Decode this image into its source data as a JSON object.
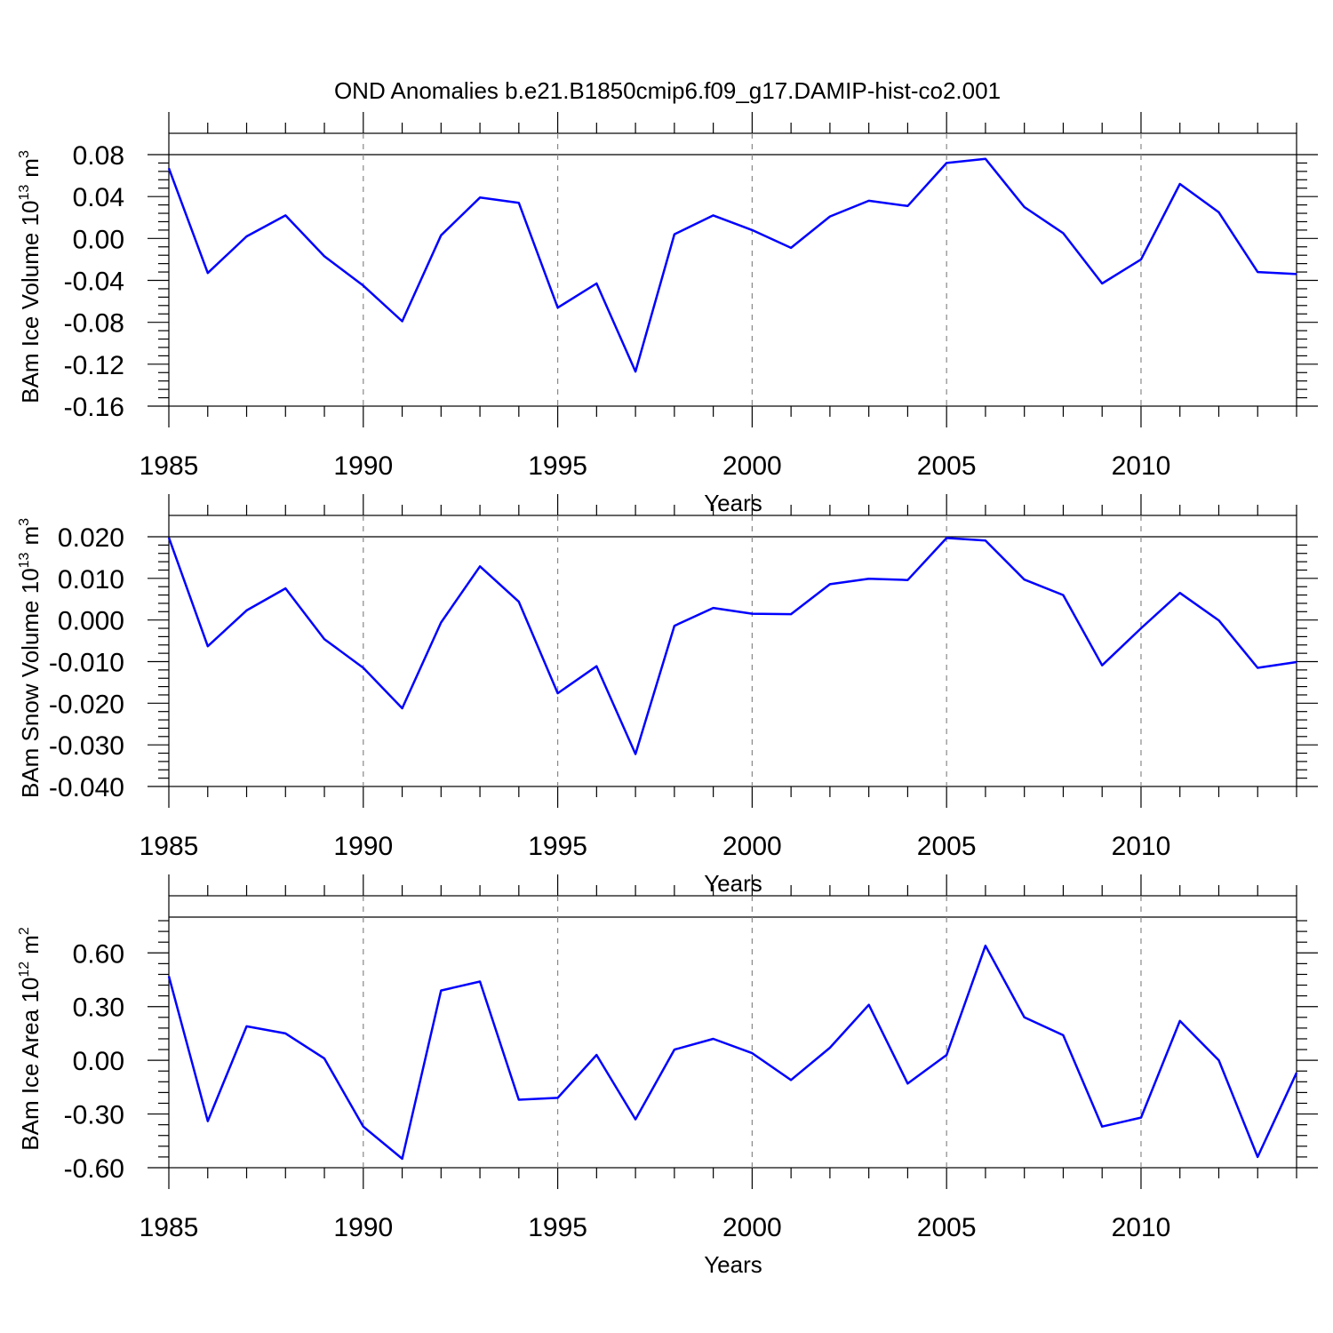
{
  "title": "OND Anomalies b.e21.B1850cmip6.f09_g17.DAMIP-hist-co2.001",
  "colors": {
    "line": "#0000ff",
    "axis": "#000000",
    "grid": "#888888"
  },
  "chart_data": [
    {
      "type": "line",
      "title": "",
      "xlabel": "Years",
      "ylabel": "BAm Ice Volume 10",
      "ylabel_exponent": "13",
      "ylabel_unit": "m",
      "ylabel_unit_exponent": "3",
      "xlim": [
        1985,
        2014
      ],
      "ylim": [
        -0.16,
        0.08
      ],
      "x_ticks": [
        1985,
        1990,
        1995,
        2000,
        2005,
        2010
      ],
      "x_tick_labels": [
        "1985",
        "1990",
        "1995",
        "2000",
        "2005",
        "2010"
      ],
      "y_ticks": [
        -0.16,
        -0.12,
        -0.08,
        -0.04,
        0.0,
        0.04,
        0.08
      ],
      "y_tick_labels": [
        "-0.16",
        "-0.12",
        "-0.08",
        "-0.04",
        "0.00",
        "0.04",
        "0.08"
      ],
      "y_minor_step": 0.008,
      "grid": "vertical dashed at major x ticks",
      "series": [
        {
          "name": "BAm Ice Volume",
          "x": [
            1985,
            1986,
            1987,
            1988,
            1989,
            1990,
            1991,
            1992,
            1993,
            1994,
            1995,
            1996,
            1997,
            1998,
            1999,
            2000,
            2001,
            2002,
            2003,
            2004,
            2005,
            2006,
            2007,
            2008,
            2009,
            2010,
            2011,
            2012,
            2013,
            2014
          ],
          "values": [
            0.067,
            -0.033,
            0.002,
            0.022,
            -0.017,
            -0.045,
            -0.079,
            0.003,
            0.039,
            0.034,
            -0.066,
            -0.043,
            -0.127,
            0.004,
            0.022,
            0.008,
            -0.009,
            0.021,
            0.036,
            0.031,
            0.072,
            0.076,
            0.03,
            0.005,
            -0.043,
            -0.02,
            0.052,
            0.025,
            -0.032,
            -0.034
          ]
        }
      ]
    },
    {
      "type": "line",
      "title": "",
      "xlabel": "Years",
      "ylabel": "BAm Snow Volume 10",
      "ylabel_exponent": "13",
      "ylabel_unit": "m",
      "ylabel_unit_exponent": "3",
      "xlim": [
        1985,
        2014
      ],
      "ylim": [
        -0.04,
        0.02
      ],
      "x_ticks": [
        1985,
        1990,
        1995,
        2000,
        2005,
        2010
      ],
      "x_tick_labels": [
        "1985",
        "1990",
        "1995",
        "2000",
        "2005",
        "2010"
      ],
      "y_ticks": [
        -0.04,
        -0.03,
        -0.02,
        -0.01,
        0.0,
        0.01,
        0.02
      ],
      "y_tick_labels": [
        "-0.040",
        "-0.030",
        "-0.020",
        "-0.010",
        "0.000",
        "0.010",
        "0.020"
      ],
      "y_minor_step": 0.002,
      "grid": "vertical dashed at major x ticks",
      "series": [
        {
          "name": "BAm Snow Volume",
          "x": [
            1985,
            1986,
            1987,
            1988,
            1989,
            1990,
            1991,
            1992,
            1993,
            1994,
            1995,
            1996,
            1997,
            1998,
            1999,
            2000,
            2001,
            2002,
            2003,
            2004,
            2005,
            2006,
            2007,
            2008,
            2009,
            2010,
            2011,
            2012,
            2013,
            2014
          ],
          "values": [
            0.0198,
            -0.0063,
            0.0023,
            0.0076,
            -0.0046,
            -0.0115,
            -0.0212,
            -0.0006,
            0.0129,
            0.0044,
            -0.0176,
            -0.0111,
            -0.0322,
            -0.0014,
            0.0029,
            0.0015,
            0.0014,
            0.0086,
            0.0099,
            0.0096,
            0.0197,
            0.0191,
            0.0097,
            0.006,
            -0.0109,
            -0.002,
            0.0065,
            -0.0001,
            -0.0115,
            -0.0101
          ]
        }
      ]
    },
    {
      "type": "line",
      "title": "",
      "xlabel": "Years",
      "ylabel": "BAm Ice Area 10",
      "ylabel_exponent": "12",
      "ylabel_unit": "m",
      "ylabel_unit_exponent": "2",
      "xlim": [
        1985,
        2014
      ],
      "ylim": [
        -0.6,
        0.8
      ],
      "x_ticks": [
        1985,
        1990,
        1995,
        2000,
        2005,
        2010
      ],
      "x_tick_labels": [
        "1985",
        "1990",
        "1995",
        "2000",
        "2005",
        "2010"
      ],
      "y_ticks": [
        -0.6,
        -0.3,
        0.0,
        0.3,
        0.6
      ],
      "y_tick_labels": [
        "-0.60",
        "-0.30",
        "0.00",
        "0.30",
        "0.60"
      ],
      "y_minor_step": 0.06,
      "grid": "vertical dashed at major x ticks",
      "series": [
        {
          "name": "BAm Ice Area",
          "x": [
            1985,
            1986,
            1987,
            1988,
            1989,
            1990,
            1991,
            1992,
            1993,
            1994,
            1995,
            1996,
            1997,
            1998,
            1999,
            2000,
            2001,
            2002,
            2003,
            2004,
            2005,
            2006,
            2007,
            2008,
            2009,
            2010,
            2011,
            2012,
            2013,
            2014
          ],
          "values": [
            0.47,
            -0.34,
            0.19,
            0.15,
            0.01,
            -0.37,
            -0.55,
            0.39,
            0.44,
            -0.22,
            -0.21,
            0.03,
            -0.33,
            0.06,
            0.12,
            0.04,
            -0.11,
            0.07,
            0.31,
            -0.13,
            0.03,
            0.64,
            0.24,
            0.14,
            -0.37,
            -0.32,
            0.22,
            0.0,
            -0.54,
            -0.07
          ]
        }
      ]
    }
  ]
}
